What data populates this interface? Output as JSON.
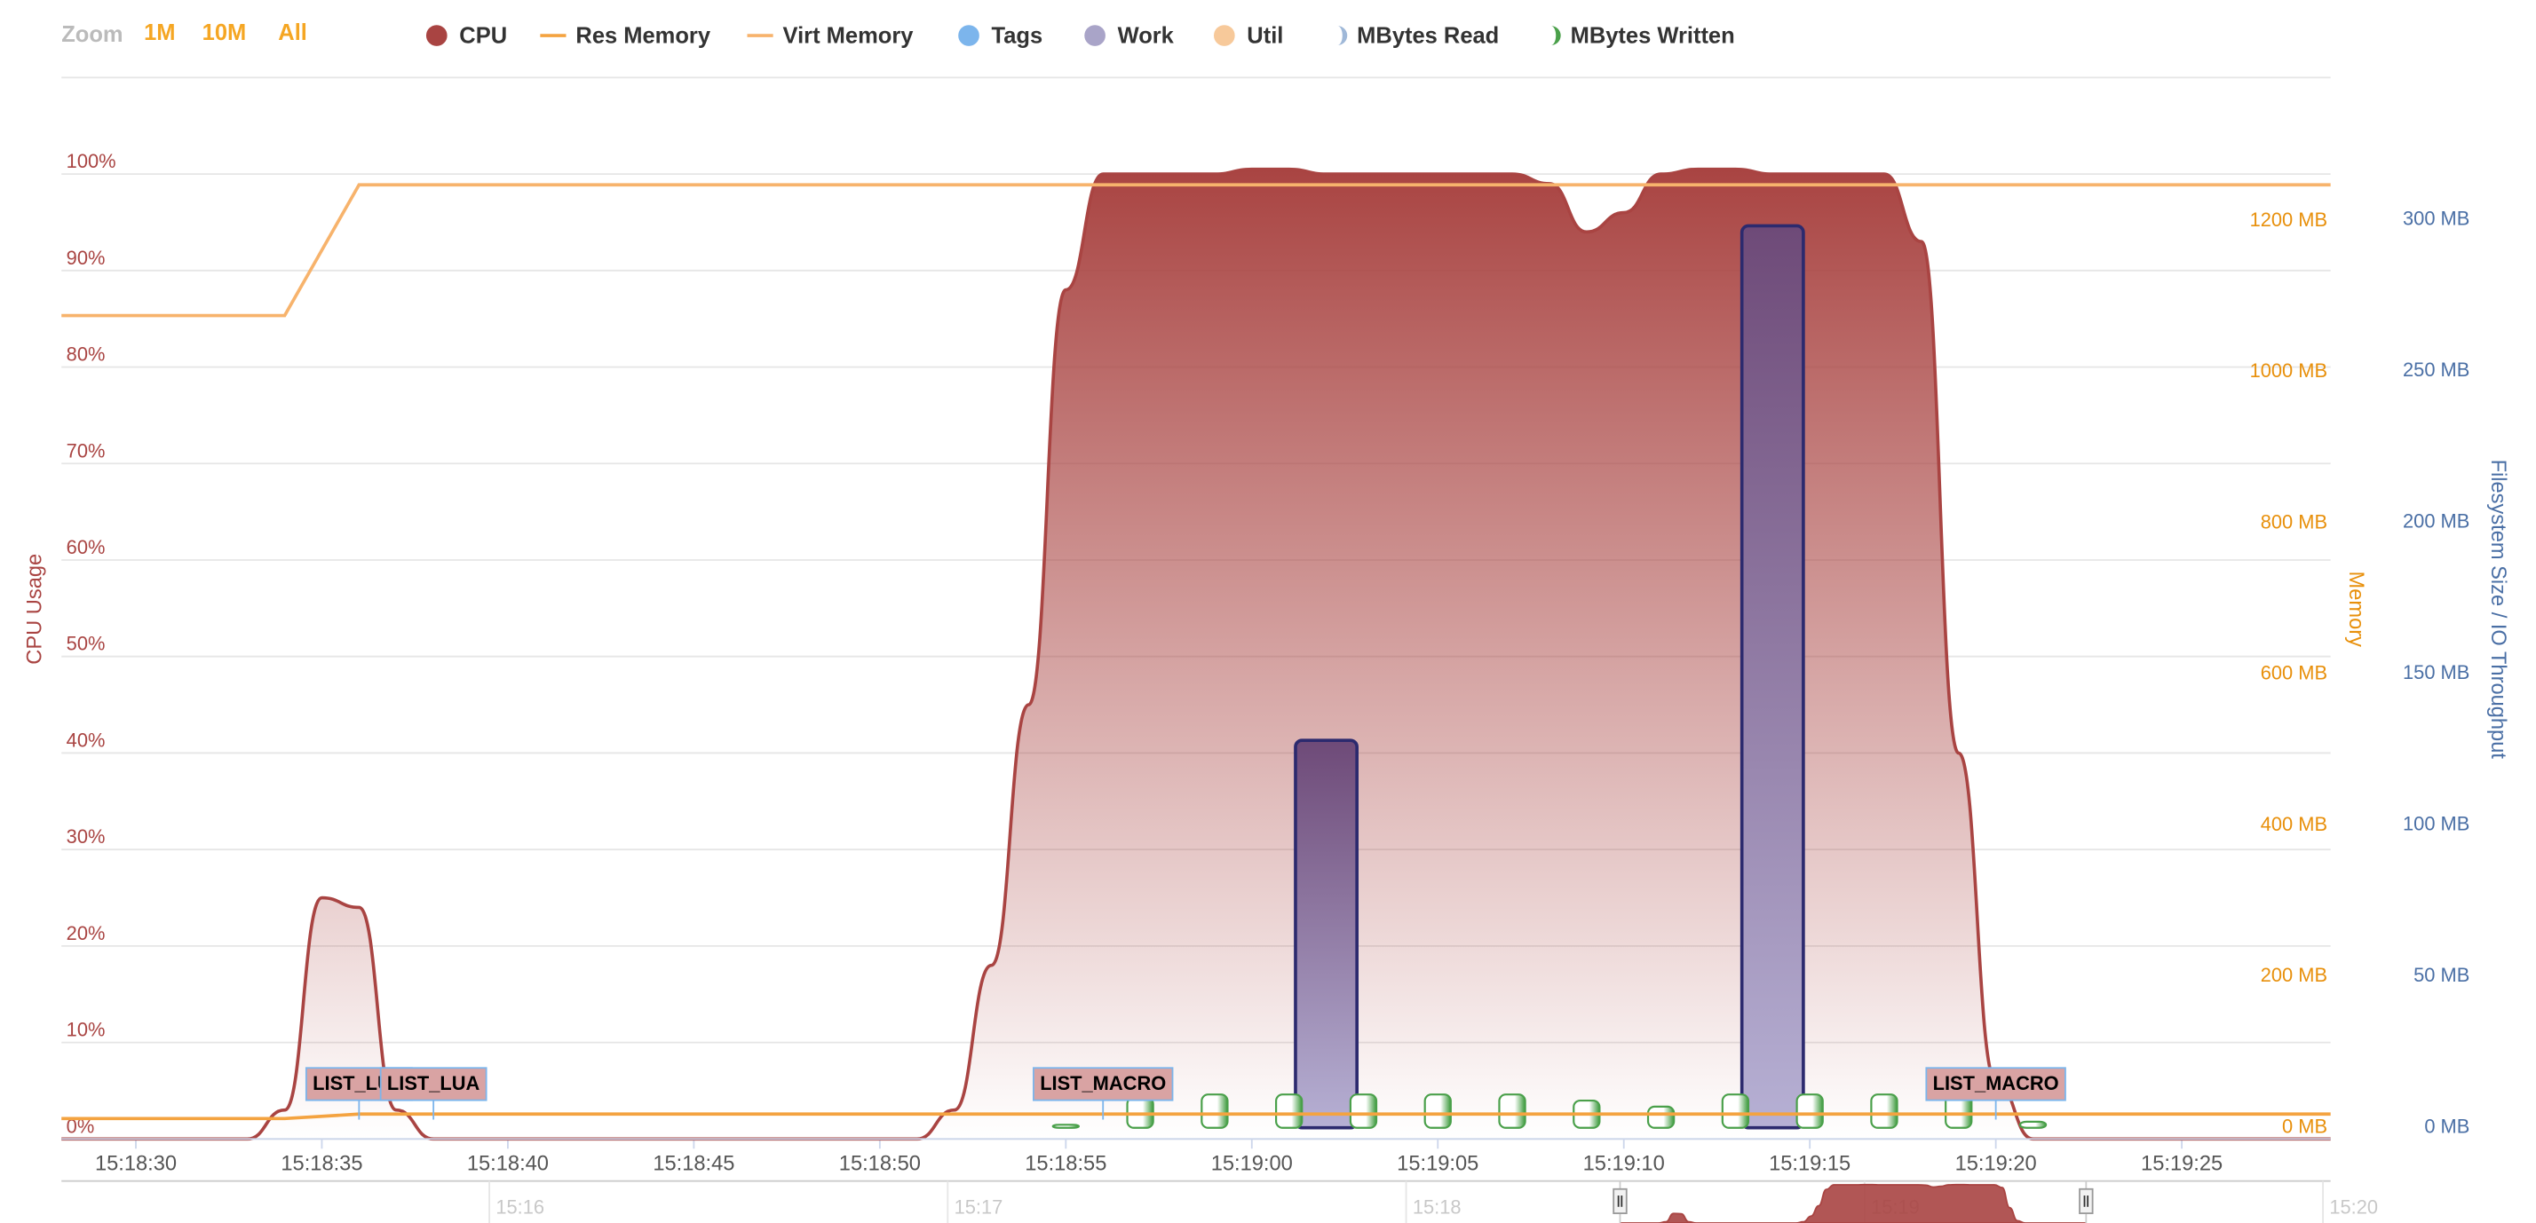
{
  "range_selector": {
    "label": "Zoom",
    "buttons": [
      "1M",
      "10M",
      "All"
    ]
  },
  "chart_data": {
    "type": "stock",
    "ylabel": "CPU Usage",
    "y2label": "Memory",
    "y3label": "Filesystem Size / IO Throughput",
    "xlim": [
      "15:18:28",
      "15:19:29"
    ],
    "xticks": [
      "15:18:30",
      "15:18:35",
      "15:18:40",
      "15:18:45",
      "15:18:50",
      "15:18:55",
      "15:19:00",
      "15:19:05",
      "15:19:10",
      "15:19:15",
      "15:19:20",
      "15:19:25"
    ],
    "ylim": [
      0,
      110
    ],
    "yticks": [
      {
        "value": 0,
        "label": "0%"
      },
      {
        "value": 10,
        "label": "10%"
      },
      {
        "value": 20,
        "label": "20%"
      },
      {
        "value": 30,
        "label": "30%"
      },
      {
        "value": 40,
        "label": "40%"
      },
      {
        "value": 50,
        "label": "50%"
      },
      {
        "value": 60,
        "label": "60%"
      },
      {
        "value": 70,
        "label": "70%"
      },
      {
        "value": 80,
        "label": "80%"
      },
      {
        "value": 90,
        "label": "90%"
      },
      {
        "value": 100,
        "label": "100%"
      }
    ],
    "y2lim": [
      -15,
      1390
    ],
    "y2ticks": [
      {
        "value": 0,
        "label": "0 MB"
      },
      {
        "value": 200,
        "label": "200 MB"
      },
      {
        "value": 400,
        "label": "400 MB"
      },
      {
        "value": 600,
        "label": "600 MB"
      },
      {
        "value": 800,
        "label": "800 MB"
      },
      {
        "value": 1000,
        "label": "1000 MB"
      },
      {
        "value": 1200,
        "label": "1200 MB"
      }
    ],
    "y3lim": [
      -3.7,
      347
    ],
    "y3ticks": [
      {
        "value": 0,
        "label": "0 MB"
      },
      {
        "value": 50,
        "label": "50 MB"
      },
      {
        "value": 100,
        "label": "100 MB"
      },
      {
        "value": 150,
        "label": "150 MB"
      },
      {
        "value": 200,
        "label": "200 MB"
      },
      {
        "value": 250,
        "label": "250 MB"
      },
      {
        "value": 300,
        "label": "300 MB"
      }
    ],
    "grid": true,
    "series": [
      {
        "name": "CPU",
        "type": "area",
        "axis": "y",
        "marker": "circle",
        "color": "#a94442",
        "x": [
          "15:18:28",
          "15:18:29",
          "15:18:30",
          "15:18:31",
          "15:18:32",
          "15:18:33",
          "15:18:34",
          "15:18:35",
          "15:18:36",
          "15:18:37",
          "15:18:38",
          "15:18:39",
          "15:18:40",
          "15:18:41",
          "15:18:42",
          "15:18:43",
          "15:18:44",
          "15:18:45",
          "15:18:46",
          "15:18:47",
          "15:18:48",
          "15:18:49",
          "15:18:50",
          "15:18:51",
          "15:18:52",
          "15:18:53",
          "15:18:54",
          "15:18:55",
          "15:18:56",
          "15:18:57",
          "15:18:58",
          "15:18:59",
          "15:19:00",
          "15:19:01",
          "15:19:02",
          "15:19:03",
          "15:19:04",
          "15:19:05",
          "15:19:06",
          "15:19:07",
          "15:19:08",
          "15:19:09",
          "15:19:10",
          "15:19:11",
          "15:19:12",
          "15:19:13",
          "15:19:14",
          "15:19:15",
          "15:19:16",
          "15:19:17",
          "15:19:18",
          "15:19:19",
          "15:19:20",
          "15:19:21",
          "15:19:22",
          "15:19:23",
          "15:19:24",
          "15:19:25",
          "15:19:26",
          "15:19:27",
          "15:19:28",
          "15:19:29"
        ],
        "values": [
          0,
          0,
          0,
          0,
          0,
          0,
          3,
          25,
          24,
          3,
          0,
          0,
          0,
          0,
          0,
          0,
          0,
          0,
          0,
          0,
          0,
          0,
          0,
          0,
          3,
          18,
          45,
          88,
          100,
          100,
          100,
          100,
          100.5,
          100.5,
          100,
          100,
          100,
          100,
          100,
          100,
          99,
          94,
          96,
          100,
          100.5,
          100.5,
          100,
          100,
          100,
          100,
          93,
          40,
          6,
          0,
          0,
          0,
          0,
          0,
          0,
          0,
          0,
          0
        ]
      },
      {
        "name": "Res Memory",
        "type": "line",
        "axis": "y2",
        "marker": "line",
        "color": "#f4a340",
        "x": [
          "15:18:28",
          "15:18:34",
          "15:18:36",
          "15:19:29"
        ],
        "values": [
          12,
          12,
          18,
          18
        ]
      },
      {
        "name": "Virt Memory",
        "type": "line",
        "axis": "y2",
        "marker": "line",
        "color": "#f7b36c",
        "x": [
          "15:18:28",
          "15:18:34",
          "15:18:36",
          "15:19:29"
        ],
        "values": [
          1075,
          1075,
          1248,
          1248
        ]
      },
      {
        "name": "Tags",
        "marker": "circle",
        "color": "#7cb5ec"
      },
      {
        "name": "Work",
        "type": "column",
        "axis": "y3",
        "marker": "circle",
        "color": "#a9a4c8",
        "x": [
          "15:19:02",
          "15:19:14"
        ],
        "values": [
          128,
          298
        ]
      },
      {
        "name": "Util",
        "marker": "circle",
        "color": "#f7c99a"
      },
      {
        "name": "MBytes Read",
        "marker": "half",
        "color": "#9fb8d8"
      },
      {
        "name": "MBytes Written",
        "type": "column",
        "axis": "y3",
        "marker": "half",
        "color": "#4aa04a",
        "x": [
          "15:18:55",
          "15:18:57",
          "15:18:59",
          "15:19:01",
          "15:19:03",
          "15:19:05",
          "15:19:07",
          "15:19:09",
          "15:19:11",
          "15:19:13",
          "15:19:15",
          "15:19:17",
          "15:19:19",
          "15:19:21"
        ],
        "values": [
          1,
          10,
          11,
          11,
          11,
          11,
          11,
          9,
          7,
          11,
          11,
          11,
          11,
          2
        ]
      }
    ],
    "flags": [
      {
        "x": "15:18:36",
        "title": "LIST_LUA"
      },
      {
        "x": "15:18:38",
        "title": "LIST_LUA"
      },
      {
        "x": "15:18:56",
        "title": "LIST_MACRO"
      },
      {
        "x": "15:19:20",
        "title": "LIST_MACRO"
      }
    ],
    "navigator": {
      "xlim": [
        "15:15:04",
        "15:20:01"
      ],
      "xticks": [
        "15:16",
        "15:17",
        "15:18",
        "15:19",
        "15:20"
      ]
    }
  }
}
